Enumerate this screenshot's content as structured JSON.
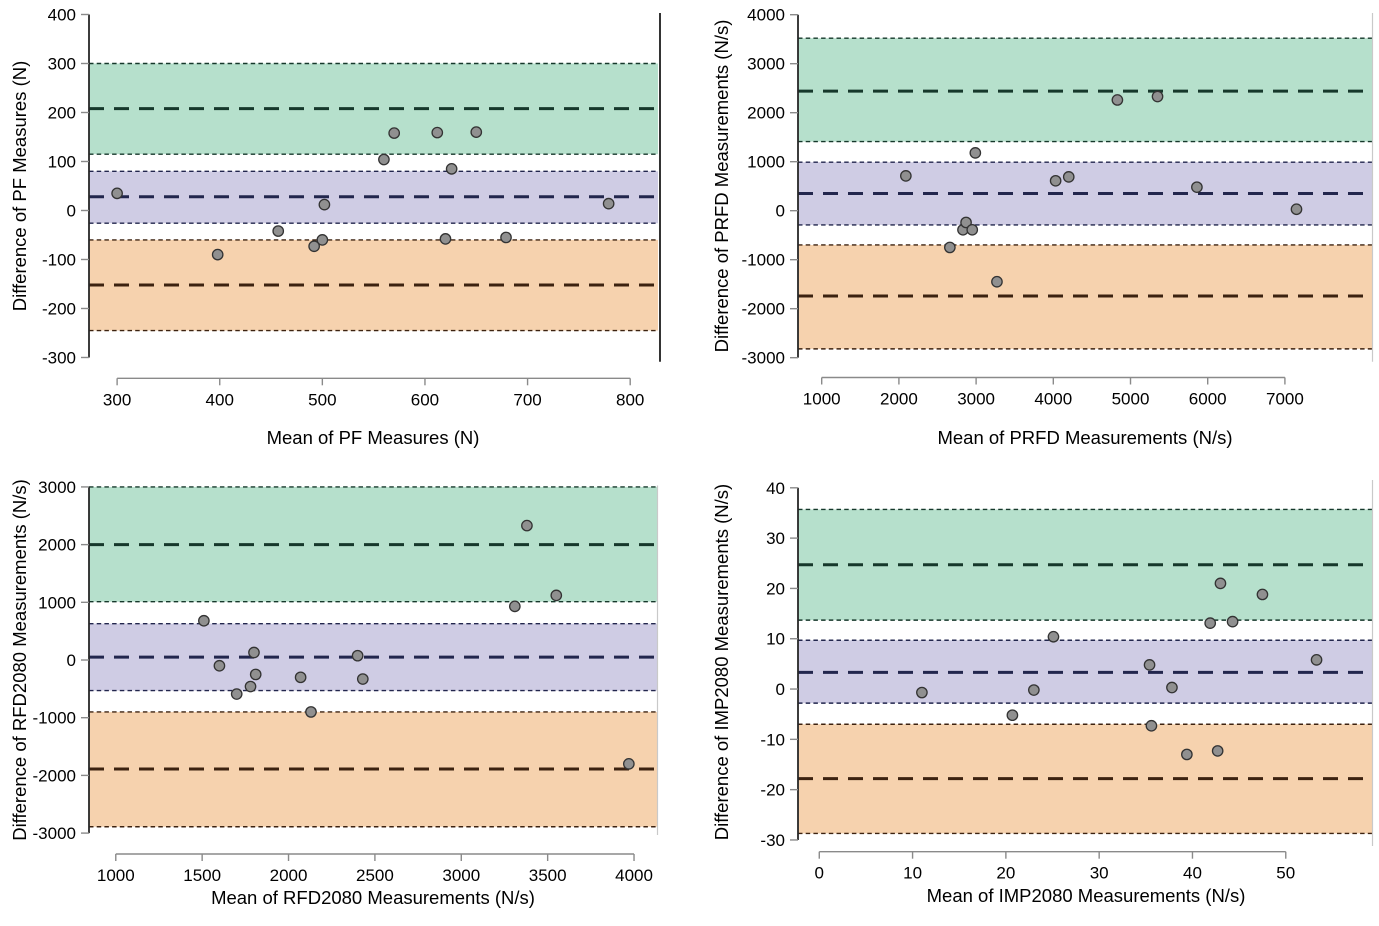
{
  "figure": {
    "background": "#ffffff"
  },
  "colors": {
    "upper_band": "#b6e0cc",
    "mid_band": "#cfcce4",
    "lower_band": "#f6d2ae",
    "upper_line": "#16382b",
    "mid_line": "#22264d",
    "lower_line": "#3c2210",
    "point_fill": "#909090",
    "point_stroke": "#333333",
    "y_axis_line": "#262626",
    "x_axis_line": "#8a8a8a",
    "tick_mark": "#8a8a8a",
    "tick_label": "#000000",
    "panel1_right_border": "#000000",
    "panel_right_border": "#c9c9c9"
  },
  "chart_data": [
    {
      "type": "scatter",
      "measure": "PF",
      "xlabel": "Mean of PF Measures (N)",
      "ylabel": "Difference of PF Measures (N)",
      "xlim": [
        272.6,
        827.1
      ],
      "ylim": [
        -308.6,
        405.1
      ],
      "xticks": [
        300,
        400,
        500,
        600,
        700,
        800
      ],
      "yticks": [
        400,
        300,
        200,
        100,
        0,
        -100,
        -200,
        -300
      ],
      "bias": 28,
      "bias_ci": [
        -26,
        80
      ],
      "upper_loa": 208,
      "upper_loa_ci": [
        115,
        300
      ],
      "lower_loa": -152,
      "lower_loa_ci": [
        -245,
        -60
      ],
      "points": [
        [
          300,
          35
        ],
        [
          398,
          -90
        ],
        [
          457,
          -42
        ],
        [
          492,
          -73
        ],
        [
          500,
          -60
        ],
        [
          502,
          12
        ],
        [
          560,
          104
        ],
        [
          570,
          158
        ],
        [
          612,
          159
        ],
        [
          620,
          -58
        ],
        [
          626,
          85
        ],
        [
          650,
          160
        ],
        [
          679,
          -55
        ],
        [
          779,
          14
        ]
      ]
    },
    {
      "type": "scatter",
      "measure": "PRFD",
      "xlabel": "Mean of PRFD Measurements (N/s)",
      "ylabel": "Difference of PRFD Measurements (N/s)",
      "xlim": [
        693,
        8141
      ],
      "ylim": [
        -3082,
        4055
      ],
      "xticks": [
        1000,
        2000,
        3000,
        4000,
        5000,
        6000,
        7000
      ],
      "yticks": [
        4000,
        3000,
        2000,
        1000,
        0,
        -1000,
        -2000,
        -3000
      ],
      "bias": 350,
      "bias_ci": [
        -290,
        990
      ],
      "upper_loa": 2440,
      "upper_loa_ci": [
        1410,
        3520
      ],
      "lower_loa": -1740,
      "lower_loa_ci": [
        -2820,
        -700
      ],
      "points": [
        [
          2090,
          710
        ],
        [
          2660,
          -750
        ],
        [
          2830,
          -390
        ],
        [
          2870,
          -240
        ],
        [
          2950,
          -390
        ],
        [
          2990,
          1180
        ],
        [
          3270,
          -1450
        ],
        [
          4030,
          610
        ],
        [
          4200,
          690
        ],
        [
          4830,
          2260
        ],
        [
          5350,
          2330
        ],
        [
          5860,
          480
        ],
        [
          7150,
          30
        ]
      ]
    },
    {
      "type": "scatter",
      "measure": "RFD2080",
      "xlabel": "Mean of RFD2080 Measurements (N/s)",
      "ylabel": "Difference of RFD2080 Measurements (N/s)",
      "xlim": [
        845,
        4133
      ],
      "ylim": [
        -3033,
        3042
      ],
      "xticks": [
        1000,
        1500,
        2000,
        2500,
        3000,
        3500,
        4000
      ],
      "yticks": [
        3000,
        2000,
        1000,
        0,
        -1000,
        -2000,
        -3000
      ],
      "bias": 50,
      "bias_ci": [
        -530,
        630
      ],
      "upper_loa": 2000,
      "upper_loa_ci": [
        1010,
        3000
      ],
      "lower_loa": -1890,
      "lower_loa_ci": [
        -2890,
        -900
      ],
      "points": [
        [
          1510,
          680
        ],
        [
          1600,
          -100
        ],
        [
          1700,
          -590
        ],
        [
          1780,
          -460
        ],
        [
          1800,
          130
        ],
        [
          1810,
          -250
        ],
        [
          2070,
          -300
        ],
        [
          2130,
          -900
        ],
        [
          2400,
          75
        ],
        [
          2430,
          -330
        ],
        [
          3310,
          930
        ],
        [
          3380,
          2330
        ],
        [
          3550,
          1120
        ],
        [
          3970,
          -1800
        ]
      ]
    },
    {
      "type": "scatter",
      "measure": "IMP2080",
      "xlabel": "Mean of IMP2080 Measurements (N/s)",
      "ylabel": "Difference of IMP2080 Measurements (N/s)",
      "xlim": [
        -2.28,
        59.35
      ],
      "ylim": [
        -31.2,
        41.75
      ],
      "xticks": [
        0,
        10,
        20,
        30,
        40,
        50
      ],
      "yticks": [
        40,
        30,
        20,
        10,
        0,
        -10,
        -20,
        -30
      ],
      "bias": 3.3,
      "bias_ci": [
        -2.8,
        9.7
      ],
      "upper_loa": 24.7,
      "upper_loa_ci": [
        13.7,
        35.7
      ],
      "lower_loa": -17.8,
      "lower_loa_ci": [
        -28.7,
        -7.0
      ],
      "points": [
        [
          11,
          -0.7
        ],
        [
          20.7,
          -5.2
        ],
        [
          23,
          -0.2
        ],
        [
          25.1,
          10.4
        ],
        [
          35.4,
          4.8
        ],
        [
          35.6,
          -7.3
        ],
        [
          37.8,
          0.3
        ],
        [
          39.4,
          -13
        ],
        [
          41.9,
          13.1
        ],
        [
          42.7,
          -12.3
        ],
        [
          43,
          21
        ],
        [
          44.3,
          13.4
        ],
        [
          47.5,
          18.8
        ],
        [
          53.3,
          5.8
        ]
      ]
    }
  ]
}
